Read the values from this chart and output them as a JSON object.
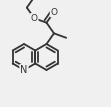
{
  "bg_color": "#f0f0f0",
  "bond_color": "#333333",
  "bond_width": 1.3,
  "figsize": [
    1.11,
    1.07
  ],
  "dpi": 100,
  "xlim": [
    0,
    111
  ],
  "ylim": [
    0,
    107
  ],
  "BL": 13,
  "c1x": 24,
  "c1y": 50,
  "N_label_fontsize": 7,
  "O_label_fontsize": 6.5
}
